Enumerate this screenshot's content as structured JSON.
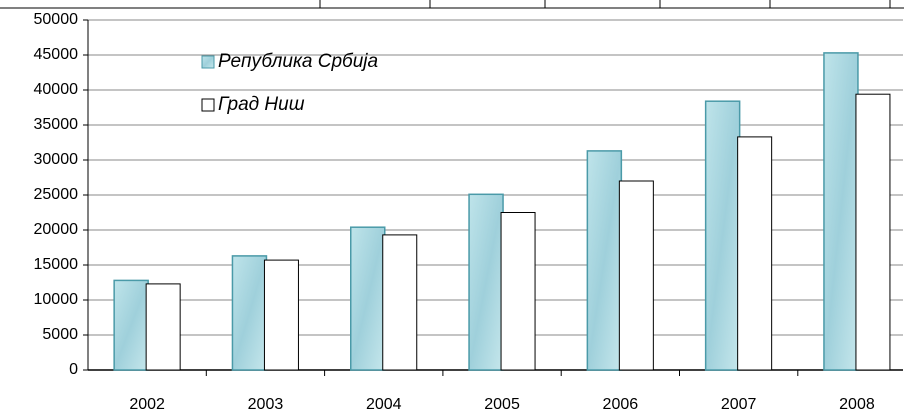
{
  "chart_data": {
    "type": "bar",
    "categories": [
      "2002",
      "2003",
      "2004",
      "2005",
      "2006",
      "2007",
      "2008"
    ],
    "series": [
      {
        "name": "Република Србија",
        "color": "#a9d9e3",
        "values": [
          12800,
          16300,
          20400,
          25100,
          31300,
          38400,
          45300
        ]
      },
      {
        "name": "Град Ниш",
        "color": "#ffffff",
        "values": [
          12300,
          15700,
          19300,
          22500,
          27000,
          33300,
          39400
        ]
      }
    ],
    "ylim": [
      0,
      50000
    ],
    "yticks": [
      0,
      5000,
      10000,
      15000,
      20000,
      25000,
      30000,
      35000,
      40000,
      45000,
      50000
    ],
    "grid": true,
    "legend": "upper left"
  }
}
